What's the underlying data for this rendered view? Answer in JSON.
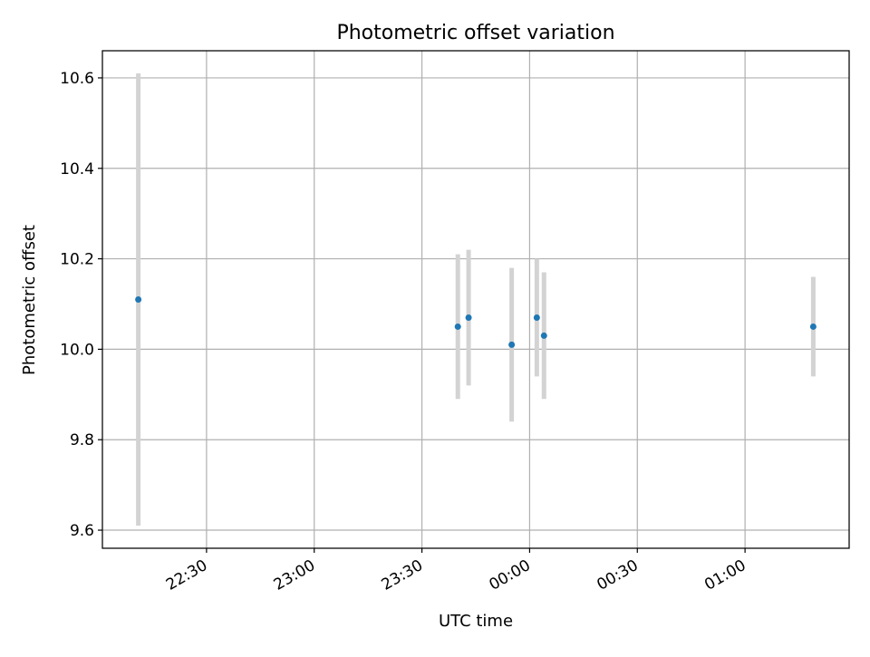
{
  "chart_data": {
    "type": "scatter",
    "title": "Photometric offset variation",
    "xlabel": "UTC time",
    "ylabel": "Photometric offset",
    "x_ticks": [
      "22:30",
      "23:00",
      "23:30",
      "00:00",
      "00:30",
      "01:00"
    ],
    "y_ticks": [
      "9.6",
      "9.8",
      "10.0",
      "10.2",
      "10.4",
      "10.6"
    ],
    "xlim": [
      "22:01",
      "01:29"
    ],
    "ylim": [
      9.56,
      10.66
    ],
    "grid": true,
    "marker_color": "#1f77b4",
    "errorbar_color": "#d3d3d3",
    "points": [
      {
        "x": "22:11",
        "y": 10.11,
        "yerr": 0.5
      },
      {
        "x": "23:40",
        "y": 10.05,
        "yerr": 0.16
      },
      {
        "x": "23:43",
        "y": 10.07,
        "yerr": 0.15
      },
      {
        "x": "23:55",
        "y": 10.01,
        "yerr": 0.17
      },
      {
        "x": "00:02",
        "y": 10.07,
        "yerr": 0.13
      },
      {
        "x": "00:04",
        "y": 10.03,
        "yerr": 0.14
      },
      {
        "x": "01:19",
        "y": 10.05,
        "yerr": 0.11
      }
    ]
  }
}
